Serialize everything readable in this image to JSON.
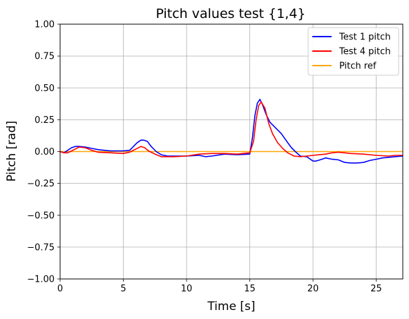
{
  "chart_data": {
    "type": "line",
    "title": "Pitch values test {1,4}",
    "xlabel": "Time [s]",
    "ylabel": "Pitch [rad]",
    "xlim": [
      0,
      27.1
    ],
    "ylim": [
      -1.0,
      1.0
    ],
    "x_ticks": [
      0,
      5,
      10,
      15,
      20,
      25
    ],
    "x_tick_labels": [
      "0",
      "5",
      "10",
      "15",
      "20",
      "25"
    ],
    "y_ticks": [
      -1.0,
      -0.75,
      -0.5,
      -0.25,
      0.0,
      0.25,
      0.5,
      0.75,
      1.0
    ],
    "y_tick_labels": [
      "−1.00",
      "−0.75",
      "−0.50",
      "−0.25",
      "0.00",
      "0.25",
      "0.50",
      "0.75",
      "1.00"
    ],
    "grid": true,
    "legend_position": "top-right",
    "series": [
      {
        "name": "Test 1 pitch",
        "color": "#0000ff",
        "x": [
          0,
          0.3,
          0.6,
          0.9,
          1.2,
          1.5,
          2.0,
          2.5,
          3.0,
          3.5,
          4.0,
          4.5,
          5.0,
          5.5,
          5.8,
          6.1,
          6.4,
          6.6,
          6.9,
          7.2,
          7.6,
          8.0,
          8.5,
          9.0,
          10.0,
          11.0,
          11.5,
          12.0,
          13.0,
          14.0,
          15.0,
          15.2,
          15.4,
          15.6,
          15.8,
          16.0,
          16.3,
          16.6,
          17.0,
          17.5,
          18.0,
          18.3,
          18.6,
          19.0,
          19.5,
          20.0,
          20.2,
          20.4,
          20.7,
          21.0,
          21.5,
          22.0,
          22.5,
          23.0,
          23.5,
          24.0,
          24.5,
          25.0,
          25.5,
          26.0,
          26.5,
          27.1
        ],
        "y": [
          0.0,
          -0.01,
          0.01,
          0.03,
          0.04,
          0.04,
          0.035,
          0.025,
          0.015,
          0.01,
          0.005,
          0.005,
          0.005,
          0.01,
          0.04,
          0.07,
          0.09,
          0.09,
          0.08,
          0.04,
          0.0,
          -0.025,
          -0.035,
          -0.035,
          -0.035,
          -0.03,
          -0.04,
          -0.035,
          -0.02,
          -0.025,
          -0.02,
          0.1,
          0.28,
          0.38,
          0.41,
          0.37,
          0.29,
          0.23,
          0.19,
          0.14,
          0.07,
          0.03,
          0.0,
          -0.035,
          -0.04,
          -0.075,
          -0.075,
          -0.07,
          -0.06,
          -0.05,
          -0.06,
          -0.065,
          -0.085,
          -0.09,
          -0.09,
          -0.085,
          -0.07,
          -0.06,
          -0.05,
          -0.045,
          -0.04,
          -0.035
        ]
      },
      {
        "name": "Test 4 pitch",
        "color": "#ff0000",
        "x": [
          0,
          0.3,
          0.6,
          0.9,
          1.2,
          1.5,
          2.0,
          2.5,
          3.0,
          4.0,
          5.0,
          5.5,
          6.0,
          6.4,
          6.7,
          7.0,
          7.5,
          8.0,
          9.0,
          10.0,
          11.0,
          12.0,
          13.0,
          14.0,
          15.0,
          15.3,
          15.5,
          15.7,
          15.9,
          16.2,
          16.5,
          16.8,
          17.2,
          17.6,
          18.0,
          18.5,
          19.0,
          19.5,
          20.0,
          20.5,
          21.0,
          21.5,
          22.0,
          22.5,
          23.0,
          24.0,
          25.0,
          26.0,
          26.5,
          27.1
        ],
        "y": [
          0.0,
          -0.01,
          -0.01,
          0.005,
          0.02,
          0.035,
          0.03,
          0.01,
          -0.005,
          -0.01,
          -0.015,
          -0.005,
          0.02,
          0.04,
          0.03,
          0.005,
          -0.02,
          -0.04,
          -0.04,
          -0.035,
          -0.02,
          -0.015,
          -0.015,
          -0.02,
          -0.01,
          0.08,
          0.25,
          0.36,
          0.39,
          0.34,
          0.22,
          0.14,
          0.07,
          0.025,
          -0.01,
          -0.035,
          -0.04,
          -0.035,
          -0.03,
          -0.025,
          -0.02,
          -0.01,
          -0.005,
          -0.01,
          -0.015,
          -0.02,
          -0.03,
          -0.035,
          -0.03,
          -0.03
        ]
      },
      {
        "name": "Pitch ref",
        "color": "#ffa500",
        "x": [
          0,
          27.1
        ],
        "y": [
          0.0,
          0.0
        ]
      }
    ]
  }
}
